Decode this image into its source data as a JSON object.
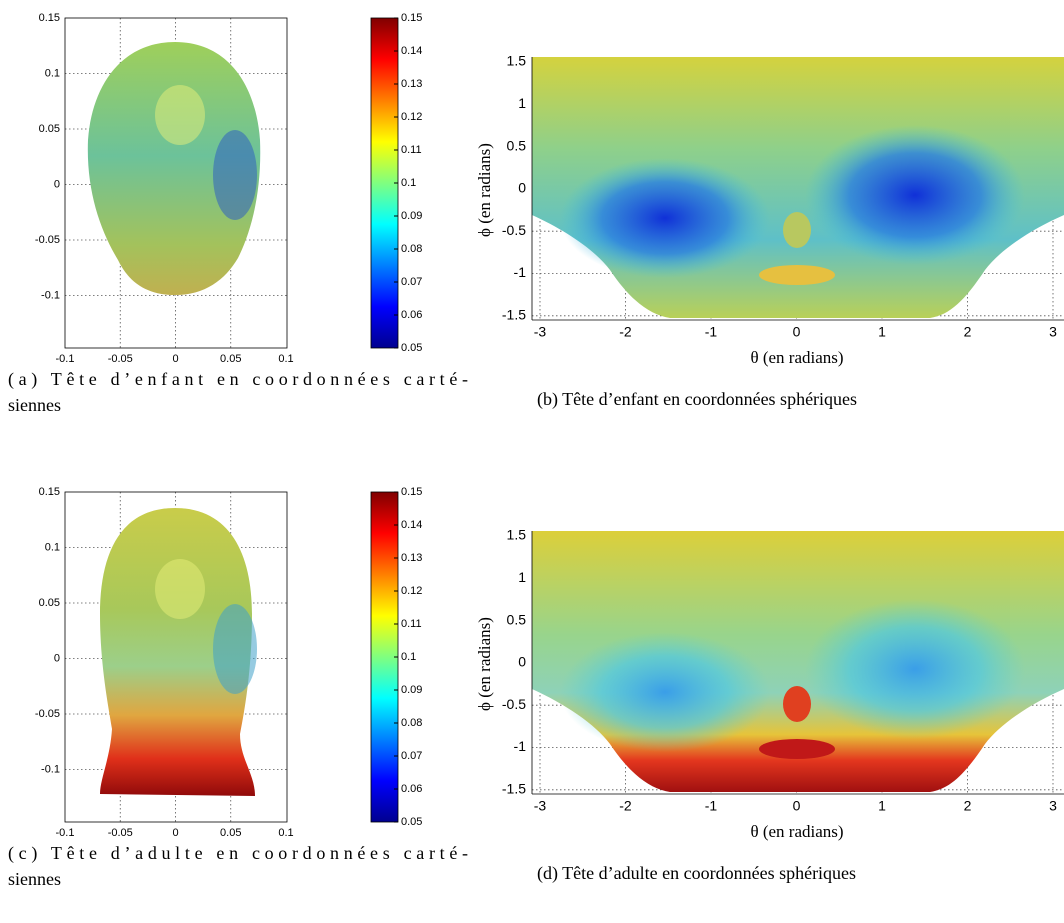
{
  "panels": [
    {
      "kind": "cartesian",
      "subject": "child",
      "xticks": [
        "-0.1",
        "-0.05",
        "0",
        "0.05",
        "0.1"
      ],
      "yticks": [
        "0.15",
        "0.1",
        "0.05",
        "0",
        "-0.05",
        "-0.1"
      ],
      "colorbar_ticks": [
        "0.15",
        "0.14",
        "0.13",
        "0.12",
        "0.11",
        "0.1",
        "0.09",
        "0.08",
        "0.07",
        "0.06",
        "0.05"
      ],
      "caption": [
        "(a)  Tête d’enfant en coordonnées carté-",
        "siennes"
      ]
    },
    {
      "kind": "spherical",
      "subject": "child",
      "xticks": [
        "-3",
        "-2",
        "-1",
        "0",
        "1",
        "2",
        "3"
      ],
      "yticks": [
        "1.5",
        "1",
        "0.5",
        "0",
        "-0.5",
        "-1",
        "-1.5"
      ],
      "xlabel": "θ (en radians)",
      "ylabel": "ϕ (en radians)",
      "caption": [
        "(b) Tête d’enfant en coordonnées sphériques"
      ]
    },
    {
      "kind": "cartesian",
      "subject": "adult",
      "xticks": [
        "-0.1",
        "-0.05",
        "0",
        "0.05",
        "0.1"
      ],
      "yticks": [
        "0.15",
        "0.1",
        "0.05",
        "0",
        "-0.05",
        "-0.1"
      ],
      "colorbar_ticks": [
        "0.15",
        "0.14",
        "0.13",
        "0.12",
        "0.11",
        "0.1",
        "0.09",
        "0.08",
        "0.07",
        "0.06",
        "0.05"
      ],
      "caption": [
        "(c)  Tête d’adulte en coordonnées carté-",
        "siennes"
      ]
    },
    {
      "kind": "spherical",
      "subject": "adult",
      "xticks": [
        "-3",
        "-2",
        "-1",
        "0",
        "1",
        "2",
        "3"
      ],
      "yticks": [
        "1.5",
        "1",
        "0.5",
        "0",
        "-0.5",
        "-1",
        "-1.5"
      ],
      "xlabel": "θ (en radians)",
      "ylabel": "ϕ (en radians)",
      "caption": [
        "(d) Tête d’adulte en coordonnées sphériques"
      ]
    }
  ]
}
